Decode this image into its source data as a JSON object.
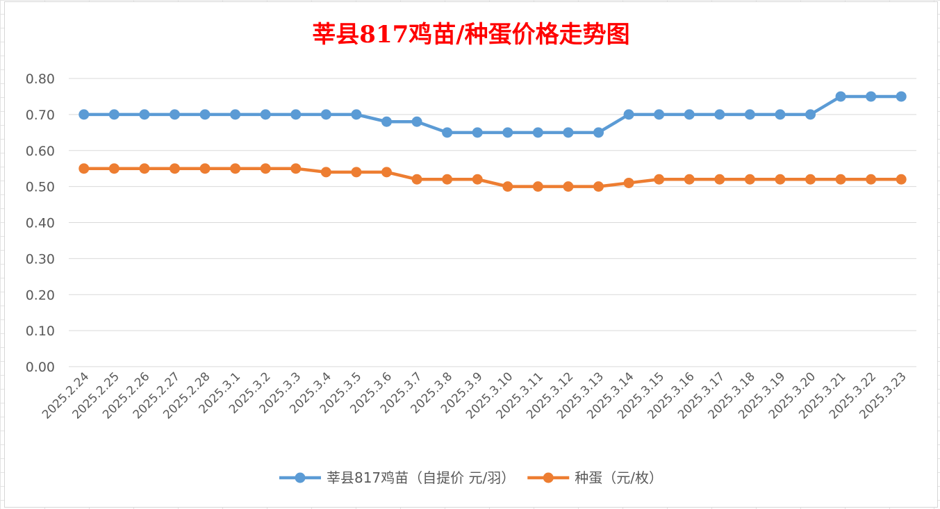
{
  "chart_data": {
    "type": "line",
    "title": "莘县817鸡苗/种蛋价格走势图",
    "categories": [
      "2025.2.24",
      "2025.2.25",
      "2025.2.26",
      "2025.2.27",
      "2025.2.28",
      "2025.3.1",
      "2025.3.2",
      "2025.3.3",
      "2025.3.4",
      "2025.3.5",
      "2025.3.6",
      "2025.3.7",
      "2025.3.8",
      "2025.3.9",
      "2025.3.10",
      "2025.3.11",
      "2025.3.12",
      "2025.3.13",
      "2025.3.14",
      "2025.3.15",
      "2025.3.16",
      "2025.3.17",
      "2025.3.18",
      "2025.3.19",
      "2025.3.20",
      "2025.3.21",
      "2025.3.22",
      "2025.3.23"
    ],
    "series": [
      {
        "name": "莘县817鸡苗（自提价 元/羽）",
        "color": "#5b9bd5",
        "values": [
          0.7,
          0.7,
          0.7,
          0.7,
          0.7,
          0.7,
          0.7,
          0.7,
          0.7,
          0.7,
          0.68,
          0.68,
          0.65,
          0.65,
          0.65,
          0.65,
          0.65,
          0.65,
          0.7,
          0.7,
          0.7,
          0.7,
          0.7,
          0.7,
          0.7,
          0.75,
          0.75,
          0.75
        ]
      },
      {
        "name": "种蛋（元/枚）",
        "color": "#ed7d31",
        "values": [
          0.55,
          0.55,
          0.55,
          0.55,
          0.55,
          0.55,
          0.55,
          0.55,
          0.54,
          0.54,
          0.54,
          0.52,
          0.52,
          0.52,
          0.5,
          0.5,
          0.5,
          0.5,
          0.51,
          0.52,
          0.52,
          0.52,
          0.52,
          0.52,
          0.52,
          0.52,
          0.52,
          0.52
        ]
      }
    ],
    "yticks": [
      "0.00",
      "0.10",
      "0.20",
      "0.30",
      "0.40",
      "0.50",
      "0.60",
      "0.70",
      "0.80"
    ],
    "ylim": [
      0,
      0.8
    ],
    "grid": true,
    "legend": "bottom"
  }
}
